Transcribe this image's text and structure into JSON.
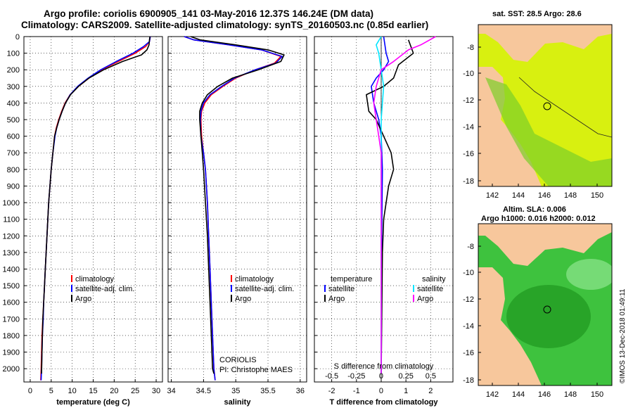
{
  "header": {
    "line1": "Argo profile: coriolis 6900905_141 03-May-2016 12.37S 146.24E (DM data)",
    "line2": "Climatology: CARS2009. Satellite-adjusted climatology: synTS_20160503.nc (0.85d earlier)"
  },
  "maps": {
    "sst_title": "sat. SST: 28.5 Argo: 28.6",
    "sla_title1": "Altim. SLA: 0.006",
    "sla_title2": "Argo h1000: 0.016 h2000: 0.012",
    "lat_ticks": [
      "-8",
      "-10",
      "-12",
      "-14",
      "-16",
      "-18"
    ],
    "lon_ticks": [
      "142",
      "144",
      "146",
      "148",
      "150"
    ],
    "argo_lon": 146.24,
    "argo_lat": -12.37,
    "colors": {
      "land": "#f7c79c",
      "sst_bg": "#d8f010",
      "sla_bg": "#3ec23e",
      "water_line": "#1a1a1a"
    }
  },
  "credit": "©IMOS 13-Dec-2018 01:49:11",
  "chart_data": [
    {
      "type": "line",
      "xlabel": "temperature (deg C)",
      "xticks": [
        0,
        5,
        10,
        15,
        20,
        25,
        30
      ],
      "xlim": [
        -1.5,
        31.5
      ],
      "ylim": [
        2080,
        0
      ],
      "yticks": [
        0,
        100,
        200,
        300,
        400,
        500,
        600,
        700,
        800,
        900,
        1000,
        1100,
        1200,
        1300,
        1400,
        1500,
        1600,
        1700,
        1800,
        1900,
        2000
      ],
      "legend": [
        "climatology",
        "satellite-adj. clim.",
        "Argo"
      ],
      "series": [
        {
          "name": "climatology",
          "color": "#ff0000",
          "x": [
            28.6,
            28.4,
            27.5,
            25.0,
            21.0,
            17.0,
            14.0,
            11.5,
            9.5,
            8.3,
            7.5,
            6.8,
            6.2,
            5.8,
            5.4,
            5.0,
            4.7,
            4.4,
            4.2,
            4.0,
            3.8,
            3.6,
            3.4,
            3.2,
            3.0,
            2.8,
            2.7,
            2.6,
            2.5
          ],
          "y": [
            0,
            30,
            60,
            100,
            150,
            200,
            250,
            300,
            350,
            400,
            450,
            500,
            550,
            600,
            700,
            800,
            900,
            1000,
            1100,
            1200,
            1300,
            1400,
            1500,
            1600,
            1700,
            1800,
            1900,
            2000,
            2070
          ]
        },
        {
          "name": "satellite-adj. clim.",
          "color": "#0000ff",
          "x": [
            28.6,
            28.4,
            27.0,
            24.5,
            20.5,
            16.8,
            13.8,
            11.3,
            9.5,
            8.4,
            7.6,
            6.9,
            6.3,
            5.9,
            5.4,
            5.0,
            4.7,
            4.4,
            4.2,
            4.0,
            3.8,
            3.6,
            3.4,
            3.2,
            3.1,
            2.9,
            2.8,
            2.7,
            2.6
          ],
          "y": [
            0,
            30,
            60,
            100,
            150,
            200,
            250,
            300,
            350,
            400,
            450,
            500,
            550,
            600,
            700,
            800,
            900,
            1000,
            1100,
            1200,
            1300,
            1400,
            1500,
            1600,
            1700,
            1800,
            1900,
            2000,
            2070
          ]
        },
        {
          "name": "Argo",
          "color": "#000000",
          "x": [
            28.5,
            28.4,
            28.3,
            27.8,
            26.5,
            22.0,
            17.5,
            14.0,
            11.5,
            9.6,
            8.4,
            7.6,
            6.9,
            6.3,
            5.8,
            5.4,
            5.0,
            4.7,
            4.4,
            4.2,
            4.0,
            3.8,
            3.6,
            3.4,
            3.2,
            3.0,
            2.9,
            2.8,
            2.7
          ],
          "y": [
            0,
            20,
            50,
            80,
            110,
            150,
            200,
            250,
            300,
            350,
            400,
            450,
            500,
            550,
            600,
            700,
            800,
            900,
            1000,
            1100,
            1200,
            1300,
            1400,
            1500,
            1600,
            1700,
            1800,
            1900,
            2030
          ]
        }
      ]
    },
    {
      "type": "line",
      "xlabel": "salinity",
      "xticks": [
        34,
        34.5,
        35,
        35.5,
        36
      ],
      "xlim": [
        33.95,
        36.1
      ],
      "ylim": [
        2080,
        0
      ],
      "legend": [
        "climatology",
        "satellite-adj. clim.",
        "Argo"
      ],
      "annotation": [
        "CORIOLIS",
        "PI: Christophe MAES"
      ],
      "series": [
        {
          "name": "climatology",
          "color": "#ff0000",
          "x": [
            34.2,
            34.35,
            34.9,
            35.4,
            35.7,
            35.6,
            35.3,
            35.0,
            34.8,
            34.62,
            34.52,
            34.47,
            34.46,
            34.47,
            34.5,
            34.53,
            34.56,
            34.58,
            34.6,
            34.62,
            34.64,
            34.66,
            34.68
          ],
          "y": [
            0,
            20,
            50,
            80,
            120,
            160,
            200,
            250,
            300,
            350,
            400,
            450,
            500,
            600,
            700,
            800,
            1000,
            1200,
            1400,
            1600,
            1800,
            2000,
            2070
          ]
        },
        {
          "name": "satellite-adj. clim.",
          "color": "#0000ff",
          "x": [
            34.2,
            34.35,
            34.9,
            35.4,
            35.72,
            35.62,
            35.3,
            34.98,
            34.78,
            34.6,
            34.5,
            34.46,
            34.45,
            34.46,
            34.5,
            34.53,
            34.56,
            34.58,
            34.6,
            34.62,
            34.64,
            34.66,
            34.68
          ],
          "y": [
            0,
            20,
            50,
            80,
            120,
            160,
            200,
            250,
            300,
            350,
            400,
            450,
            500,
            600,
            700,
            800,
            1000,
            1200,
            1400,
            1600,
            1800,
            2000,
            2070
          ]
        },
        {
          "name": "Argo",
          "color": "#000000",
          "x": [
            34.3,
            34.45,
            35.0,
            35.5,
            35.75,
            35.7,
            35.35,
            34.95,
            34.72,
            34.56,
            34.48,
            34.44,
            34.44,
            34.46,
            34.48,
            34.5,
            34.53,
            34.56,
            34.58,
            34.6,
            34.62,
            34.64,
            34.66
          ],
          "y": [
            0,
            20,
            50,
            80,
            110,
            150,
            200,
            250,
            300,
            350,
            400,
            450,
            500,
            600,
            700,
            800,
            1000,
            1200,
            1400,
            1600,
            1800,
            2000,
            2030
          ]
        }
      ]
    },
    {
      "type": "line",
      "xlabel": "T difference from climatology",
      "xticks": [
        -2,
        -1,
        0,
        1,
        2
      ],
      "xlim": [
        -2.7,
        2.9
      ],
      "top_axis_label": "S difference from climatology",
      "top_ticks": [
        "-0.5",
        "-0.25",
        "0",
        "0.25",
        "0.5"
      ],
      "ylim": [
        2080,
        0
      ],
      "legend_left_title": "temperature",
      "legend_right_title": "salinity",
      "legend_left": [
        "satellite",
        "Argo"
      ],
      "legend_right": [
        "satellite",
        "Argo"
      ],
      "series": [
        {
          "name": "T satellite",
          "color": "#0000ff",
          "x": [
            0.1,
            0.2,
            0.3,
            0.1,
            -0.2,
            -0.4,
            -0.3,
            -0.1,
            0.0,
            0.05,
            0.02,
            0.0
          ],
          "y": [
            0,
            100,
            150,
            200,
            250,
            300,
            400,
            500,
            600,
            800,
            1200,
            2030
          ]
        },
        {
          "name": "T Argo",
          "color": "#000000",
          "x": [
            1.1,
            1.3,
            0.7,
            0.5,
            0.1,
            -0.6,
            -0.5,
            -0.2,
            0.1,
            0.4,
            0.5,
            0.3,
            0.2,
            0.1,
            0.05,
            0.0
          ],
          "y": [
            20,
            100,
            170,
            250,
            300,
            350,
            450,
            500,
            600,
            700,
            800,
            900,
            1000,
            1100,
            1300,
            2030
          ]
        },
        {
          "name": "S satellite",
          "color": "#00e5ff",
          "x": [
            0.0,
            -0.2,
            -0.1,
            0.0,
            0.1,
            0.05,
            0.0,
            0.0,
            0.0
          ],
          "y": [
            0,
            50,
            100,
            200,
            300,
            400,
            500,
            1000,
            2030
          ]
        },
        {
          "name": "S Argo",
          "color": "#ff00ff",
          "x": [
            2.2,
            1.6,
            1.1,
            0.5,
            0.0,
            -0.2,
            -0.3,
            -0.2,
            -0.1,
            0.0,
            0.0,
            0.0
          ],
          "y": [
            0,
            50,
            80,
            150,
            200,
            300,
            400,
            500,
            600,
            700,
            1000,
            2030
          ]
        }
      ]
    }
  ]
}
